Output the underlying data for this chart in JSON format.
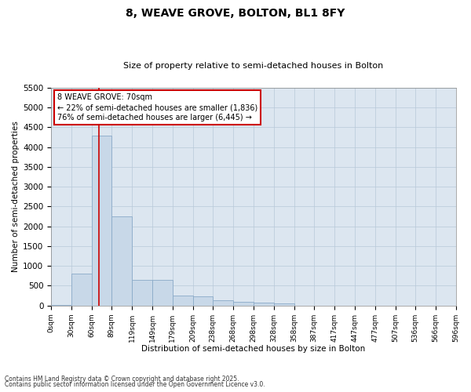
{
  "title": "8, WEAVE GROVE, BOLTON, BL1 8FY",
  "subtitle": "Size of property relative to semi-detached houses in Bolton",
  "xlabel": "Distribution of semi-detached houses by size in Bolton",
  "ylabel": "Number of semi-detached properties",
  "footnote1": "Contains HM Land Registry data © Crown copyright and database right 2025.",
  "footnote2": "Contains public sector information licensed under the Open Government Licence v3.0.",
  "annotation_title": "8 WEAVE GROVE: 70sqm",
  "annotation_line1": "← 22% of semi-detached houses are smaller (1,836)",
  "annotation_line2": "76% of semi-detached houses are larger (6,445) →",
  "property_size": 70,
  "bin_edges": [
    0,
    30,
    60,
    89,
    119,
    149,
    179,
    209,
    238,
    268,
    298,
    328,
    358,
    387,
    417,
    447,
    477,
    507,
    536,
    566,
    596
  ],
  "bar_values": [
    10,
    800,
    4300,
    2250,
    650,
    650,
    250,
    230,
    130,
    100,
    80,
    50,
    0,
    0,
    0,
    0,
    0,
    0,
    0,
    0
  ],
  "bar_color": "#c8d8e8",
  "bar_edge_color": "#8aaac8",
  "line_color": "#cc0000",
  "annotation_box_color": "#cc0000",
  "grid_color": "#b8c8d8",
  "background_color": "#dce6f0",
  "ylim": [
    0,
    5500
  ],
  "yticks": [
    0,
    500,
    1000,
    1500,
    2000,
    2500,
    3000,
    3500,
    4000,
    4500,
    5000,
    5500
  ],
  "xtick_labels": [
    "0sqm",
    "30sqm",
    "60sqm",
    "89sqm",
    "119sqm",
    "149sqm",
    "179sqm",
    "209sqm",
    "238sqm",
    "268sqm",
    "298sqm",
    "328sqm",
    "358sqm",
    "387sqm",
    "417sqm",
    "447sqm",
    "477sqm",
    "507sqm",
    "536sqm",
    "566sqm",
    "596sqm"
  ]
}
